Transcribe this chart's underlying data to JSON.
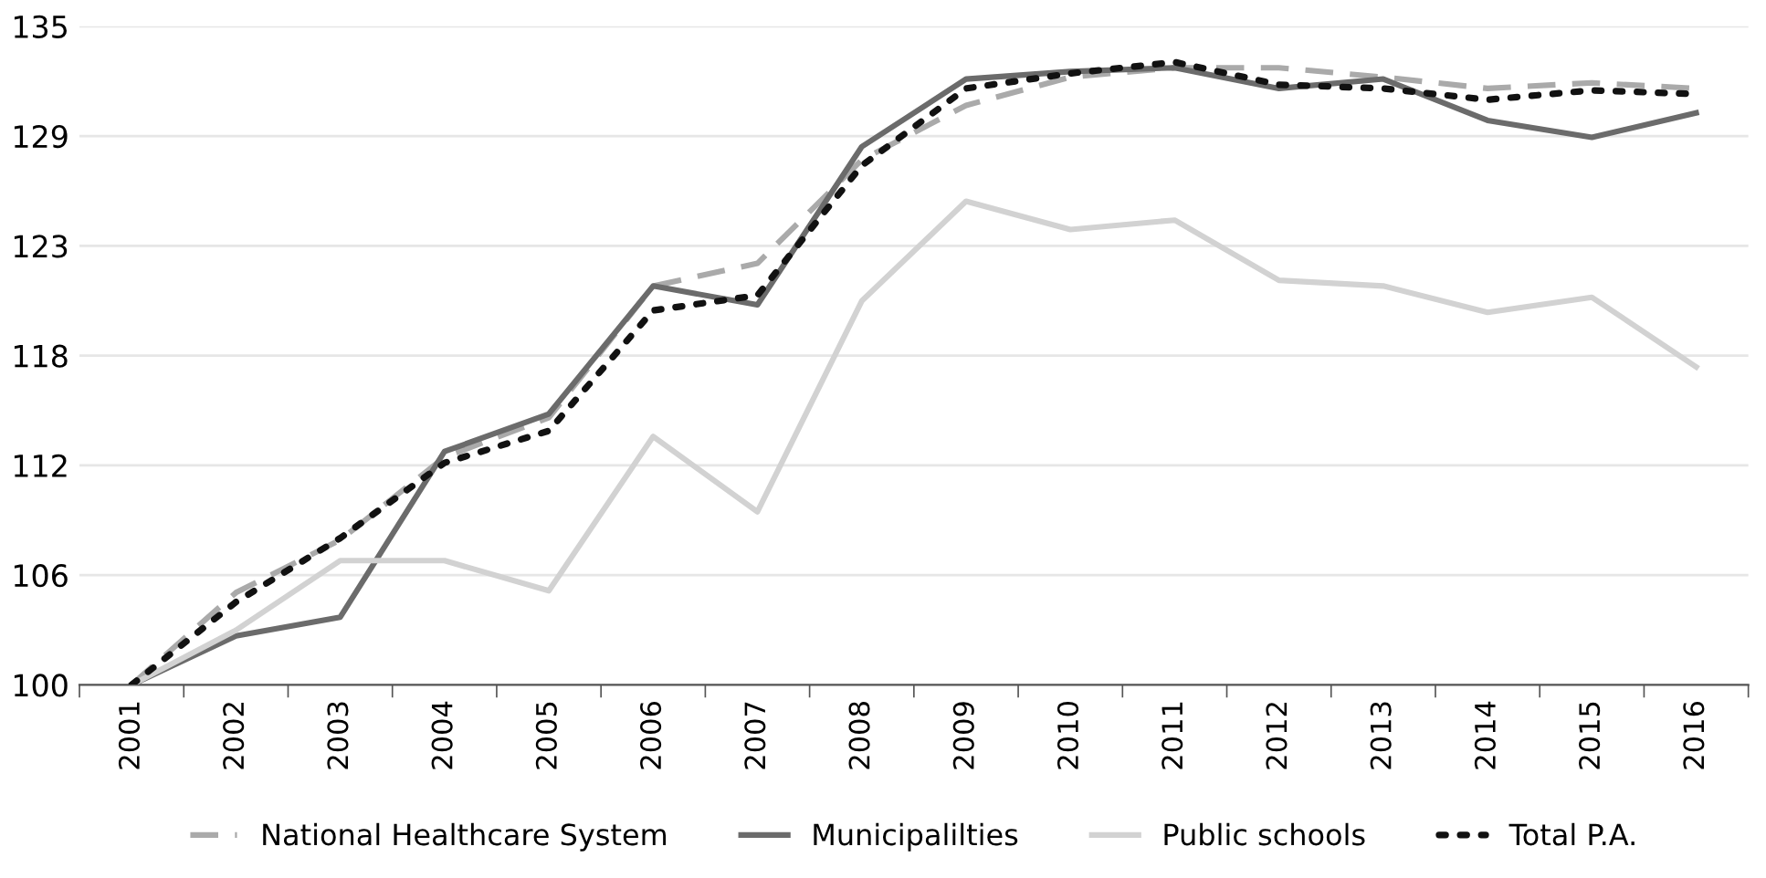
{
  "chart_data": {
    "type": "line",
    "categories": [
      "2001",
      "2002",
      "2003",
      "2004",
      "2005",
      "2006",
      "2007",
      "2008",
      "2009",
      "2010",
      "2011",
      "2012",
      "2013",
      "2014",
      "2015",
      "2016"
    ],
    "ylim": [
      100,
      135
    ],
    "yticks": [
      100,
      {
        "value": 105.83,
        "label": "106"
      },
      {
        "value": 111.67,
        "label": "112"
      },
      {
        "value": 117.5,
        "label": "118"
      },
      {
        "value": 123.33,
        "label": "123"
      },
      {
        "value": 129.17,
        "label": "129"
      },
      135
    ],
    "grid": "y",
    "legend": "bottom",
    "marker": "none",
    "series": [
      {
        "name": "National Healthcare System",
        "color": "#aaaaaa",
        "line_style": "dashed",
        "values": [
          100,
          104.9,
          107.7,
          112.1,
          114.2,
          121.2,
          122.4,
          127.9,
          130.8,
          132.3,
          132.8,
          132.8,
          132.3,
          131.7,
          132.0,
          131.7
        ]
      },
      {
        "name": "Municipalilties",
        "color": "#6b6b6b",
        "line_style": "solid",
        "values": [
          100,
          102.6,
          103.6,
          112.4,
          114.4,
          121.2,
          120.2,
          128.6,
          132.2,
          132.6,
          132.8,
          131.7,
          132.2,
          130.0,
          129.1,
          130.4
        ]
      },
      {
        "name": "Public schools",
        "color": "#d2d2d2",
        "line_style": "solid",
        "values": [
          100,
          102.9,
          106.6,
          106.6,
          105.0,
          113.2,
          109.2,
          120.4,
          125.7,
          124.2,
          124.7,
          121.5,
          121.2,
          119.8,
          120.6,
          116.9
        ]
      },
      {
        "name": "Total P.A.",
        "color": "#111111",
        "line_style": "dotted",
        "values": [
          100,
          104.4,
          107.8,
          111.8,
          113.5,
          119.9,
          120.7,
          127.6,
          131.7,
          132.5,
          133.1,
          131.9,
          131.7,
          131.1,
          131.6,
          131.4
        ]
      }
    ]
  }
}
